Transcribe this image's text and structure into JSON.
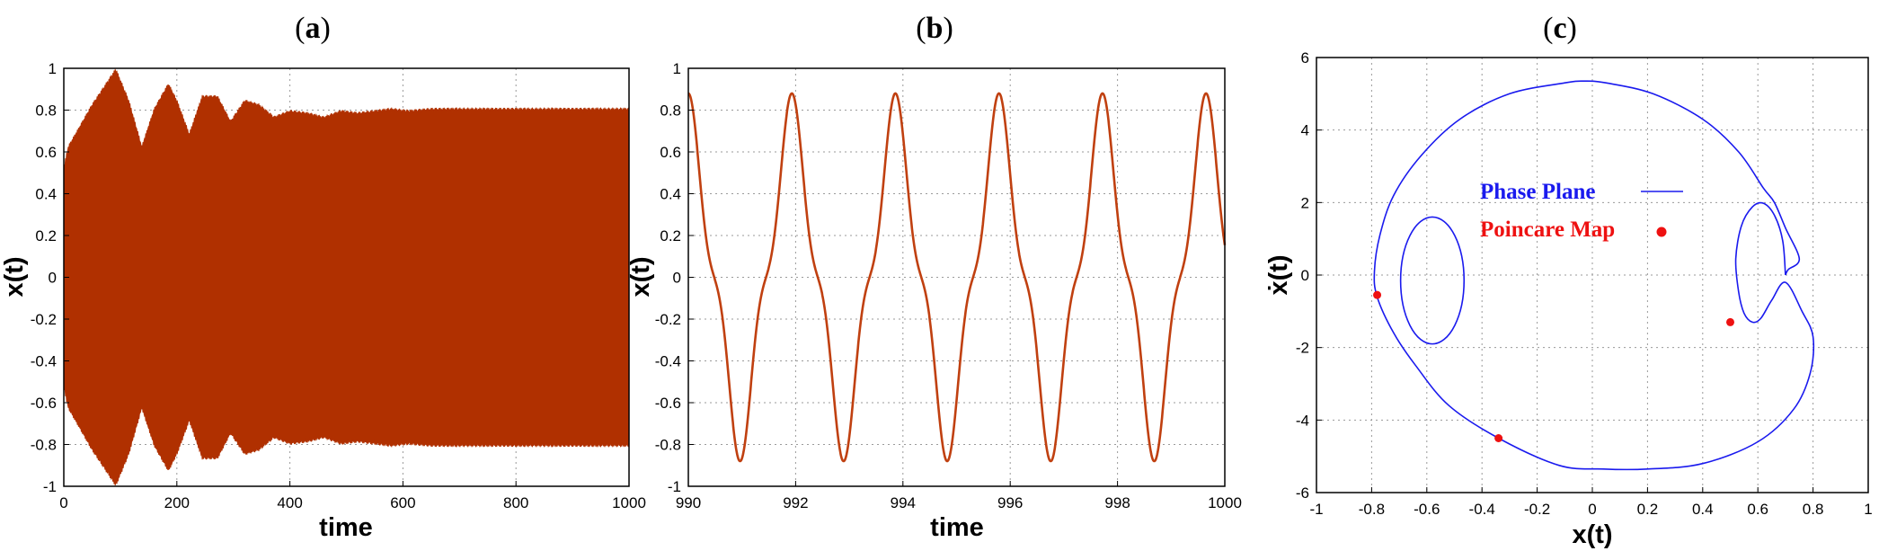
{
  "chart_data": [
    {
      "panel_label": "a",
      "type": "line",
      "description_units": "x(t) vs time, envelope of fast oscillation",
      "xlabel": "time",
      "ylabel": "x(t)",
      "xlim": [
        0,
        1000
      ],
      "ylim": [
        -1,
        1
      ],
      "xticks": [
        "0",
        "200",
        "400",
        "600",
        "800",
        "1000"
      ],
      "yticks": [
        "-1",
        "-0.8",
        "-0.6",
        "-0.4",
        "-0.2",
        "0",
        "0.2",
        "0.4",
        "0.6",
        "0.8",
        "1"
      ],
      "color": "#b03000",
      "envelope": {
        "t": [
          0,
          8,
          25,
          50,
          70,
          92,
          115,
          138,
          160,
          185,
          200,
          222,
          245,
          272,
          295,
          320,
          345,
          372,
          400,
          430,
          460,
          490,
          520,
          550,
          580,
          610,
          650,
          700,
          1000
        ],
        "upper": [
          0.52,
          0.62,
          0.7,
          0.82,
          0.9,
          0.99,
          0.84,
          0.62,
          0.8,
          0.92,
          0.84,
          0.68,
          0.86,
          0.86,
          0.74,
          0.84,
          0.82,
          0.76,
          0.79,
          0.78,
          0.76,
          0.79,
          0.78,
          0.79,
          0.8,
          0.79,
          0.8,
          0.8,
          0.8
        ]
      }
    },
    {
      "panel_label": "b",
      "type": "line",
      "xlabel": "time",
      "ylabel": "x(t)",
      "xlim": [
        990,
        1000
      ],
      "ylim": [
        -1,
        1
      ],
      "xticks": [
        "990",
        "992",
        "994",
        "996",
        "998",
        "1000"
      ],
      "yticks": [
        "-1",
        "-0.8",
        "-0.6",
        "-0.4",
        "-0.2",
        "0",
        "0.2",
        "0.4",
        "0.6",
        "0.8",
        "1"
      ],
      "color": "#c04010",
      "signal": {
        "period": 1.93,
        "main_amplitude": 0.725,
        "harmonic_amplitude": 0.155,
        "harmonic_order": 3,
        "phase_ref_time": 990.0
      }
    },
    {
      "panel_label": "c",
      "type": "scatter",
      "xlabel": "x(t)",
      "ylabel": "ẋ(t)",
      "xlim": [
        -1,
        1
      ],
      "ylim": [
        -6,
        6
      ],
      "xticks": [
        "-1",
        "-0.8",
        "-0.6",
        "-0.4",
        "-0.2",
        "0",
        "0.2",
        "0.4",
        "0.6",
        "0.8",
        "1"
      ],
      "yticks": [
        "-6",
        "-4",
        "-2",
        "0",
        "2",
        "4",
        "6"
      ],
      "series": [
        {
          "name": "Phase Plane",
          "color": "#1a1aee",
          "type": "line",
          "points": [
            [
              0.7,
              0.0
            ],
            [
              0.69,
              0.95
            ],
            [
              0.66,
              1.65
            ],
            [
              0.62,
              1.98
            ],
            [
              0.58,
              1.88
            ],
            [
              0.54,
              1.35
            ],
            [
              0.52,
              0.45
            ],
            [
              0.53,
              -0.45
            ],
            [
              0.55,
              -1.05
            ],
            [
              0.58,
              -1.3
            ],
            [
              0.61,
              -1.2
            ],
            [
              0.65,
              -0.7
            ],
            [
              0.7,
              -0.2
            ],
            [
              0.76,
              -1.0
            ],
            [
              0.8,
              -1.7
            ],
            [
              0.79,
              -2.7
            ],
            [
              0.73,
              -3.7
            ],
            [
              0.6,
              -4.6
            ],
            [
              0.4,
              -5.2
            ],
            [
              0.2,
              -5.35
            ],
            [
              0.04,
              -5.35
            ],
            [
              -0.12,
              -5.25
            ],
            [
              -0.34,
              -4.5
            ],
            [
              -0.52,
              -3.6
            ],
            [
              -0.64,
              -2.5
            ],
            [
              -0.72,
              -1.6
            ],
            [
              -0.78,
              -0.6
            ],
            [
              -0.79,
              0.1
            ],
            [
              -0.77,
              1.1
            ],
            [
              -0.72,
              2.2
            ],
            [
              -0.62,
              3.3
            ],
            [
              -0.48,
              4.3
            ],
            [
              -0.3,
              5.0
            ],
            [
              -0.1,
              5.3
            ],
            [
              -0.03,
              5.35
            ],
            [
              0.05,
              5.3
            ],
            [
              0.22,
              5.0
            ],
            [
              0.4,
              4.3
            ],
            [
              0.53,
              3.4
            ],
            [
              0.62,
              2.4
            ],
            [
              0.66,
              2.0
            ],
            [
              0.7,
              1.3
            ],
            [
              0.75,
              0.45
            ],
            [
              0.71,
              0.15
            ],
            [
              0.7,
              0.0
            ]
          ],
          "small_loop": {
            "cx": -0.58,
            "cy": -0.15,
            "rx": 0.115,
            "ry": 1.75
          }
        },
        {
          "name": "Poincare Map",
          "color": "#ee1111",
          "type": "scatter",
          "points": [
            [
              -0.78,
              -0.55
            ],
            [
              0.5,
              -1.3
            ],
            [
              -0.34,
              -4.5
            ]
          ]
        }
      ],
      "legend": {
        "position": "center-left inside",
        "entries": [
          "Phase Plane",
          "Poincare Map"
        ]
      }
    }
  ]
}
